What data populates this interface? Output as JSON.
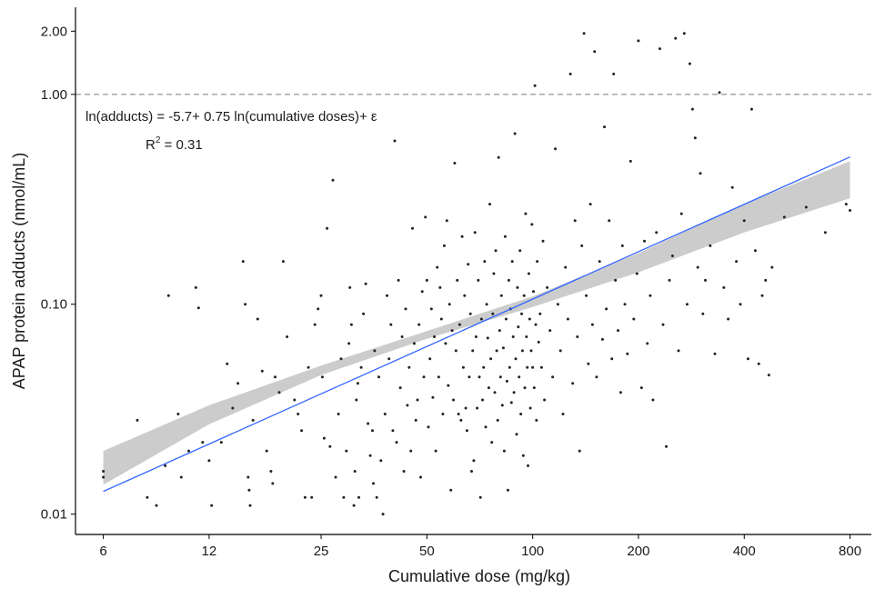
{
  "chart_data": {
    "type": "scatter",
    "title": "",
    "xlabel": "Cumulative dose (mg/kg)",
    "ylabel": "APAP protein adducts (nmol/mL)",
    "x_scale": "log",
    "y_scale": "log",
    "xlim": [
      5,
      920
    ],
    "ylim": [
      0.008,
      2.6
    ],
    "x_ticks": [
      6,
      12,
      25,
      50,
      100,
      200,
      400,
      800
    ],
    "x_tick_labels": [
      "6",
      "12",
      "25",
      "50",
      "100",
      "200",
      "400",
      "800"
    ],
    "y_ticks": [
      0.01,
      0.1,
      1,
      2
    ],
    "y_tick_labels": [
      "0.01",
      "0.10",
      "1.00",
      "2.00"
    ],
    "grid": false,
    "reference_line": {
      "y": 1.0,
      "style": "dashed",
      "color": "#888888"
    },
    "annotations": {
      "equation": "ln(adducts) = -5.7+ 0.75 ln(cumulative doses)+ ε",
      "r2_prefix": "R",
      "r2_sup": "2",
      "r2_suffix": " = 0.31"
    },
    "regression": {
      "intercept": -5.7,
      "slope": 0.75,
      "x_range": [
        6,
        800
      ],
      "color": "#3366FF",
      "ci_color": "#cccccc"
    },
    "ci_band": {
      "x": [
        6,
        12,
        25,
        50,
        100,
        200,
        400,
        800
      ],
      "lower": [
        0.0138,
        0.0268,
        0.046,
        0.0685,
        0.097,
        0.142,
        0.22,
        0.32
      ],
      "upper": [
        0.02,
        0.033,
        0.051,
        0.0745,
        0.109,
        0.175,
        0.3,
        0.48
      ]
    },
    "points": [
      [
        6.0,
        0.015
      ],
      [
        6.0,
        0.016
      ],
      [
        7.5,
        0.028
      ],
      [
        8.0,
        0.012
      ],
      [
        8.5,
        0.011
      ],
      [
        9.0,
        0.017
      ],
      [
        9.2,
        0.11
      ],
      [
        9.8,
        0.03
      ],
      [
        10.0,
        0.015
      ],
      [
        10.5,
        0.02
      ],
      [
        11.0,
        0.12
      ],
      [
        11.2,
        0.096
      ],
      [
        11.5,
        0.022
      ],
      [
        12.0,
        0.018
      ],
      [
        12.2,
        0.011
      ],
      [
        13.0,
        0.022
      ],
      [
        13.5,
        0.052
      ],
      [
        14.0,
        0.032
      ],
      [
        14.5,
        0.042
      ],
      [
        15.0,
        0.16
      ],
      [
        15.2,
        0.1
      ],
      [
        15.5,
        0.015
      ],
      [
        15.6,
        0.013
      ],
      [
        15.7,
        0.011
      ],
      [
        16.0,
        0.028
      ],
      [
        16.5,
        0.085
      ],
      [
        17.0,
        0.048
      ],
      [
        17.5,
        0.02
      ],
      [
        18.0,
        0.016
      ],
      [
        18.2,
        0.014
      ],
      [
        18.5,
        0.045
      ],
      [
        19.0,
        0.038
      ],
      [
        19.5,
        0.16
      ],
      [
        20.0,
        0.07
      ],
      [
        21.0,
        0.035
      ],
      [
        21.5,
        0.03
      ],
      [
        22.0,
        0.025
      ],
      [
        22.5,
        0.012
      ],
      [
        23.0,
        0.05
      ],
      [
        23.5,
        0.012
      ],
      [
        24.0,
        0.08
      ],
      [
        24.5,
        0.095
      ],
      [
        25.0,
        0.11
      ],
      [
        25.2,
        0.045
      ],
      [
        25.5,
        0.023
      ],
      [
        26.0,
        0.23
      ],
      [
        26.5,
        0.021
      ],
      [
        27.0,
        0.39
      ],
      [
        27.5,
        0.015
      ],
      [
        28.0,
        0.03
      ],
      [
        28.5,
        0.055
      ],
      [
        29.0,
        0.012
      ],
      [
        29.5,
        0.02
      ],
      [
        30.0,
        0.065
      ],
      [
        30.2,
        0.12
      ],
      [
        30.5,
        0.08
      ],
      [
        31.0,
        0.011
      ],
      [
        31.2,
        0.016
      ],
      [
        31.5,
        0.035
      ],
      [
        31.8,
        0.042
      ],
      [
        32.0,
        0.012
      ],
      [
        32.5,
        0.05
      ],
      [
        33.0,
        0.09
      ],
      [
        33.5,
        0.125
      ],
      [
        34.0,
        0.027
      ],
      [
        34.5,
        0.019
      ],
      [
        35.0,
        0.025
      ],
      [
        35.2,
        0.014
      ],
      [
        35.5,
        0.06
      ],
      [
        36.0,
        0.012
      ],
      [
        36.5,
        0.045
      ],
      [
        37.0,
        0.018
      ],
      [
        37.5,
        0.01
      ],
      [
        38.0,
        0.03
      ],
      [
        38.5,
        0.11
      ],
      [
        39.0,
        0.055
      ],
      [
        39.5,
        0.08
      ],
      [
        40.0,
        0.025
      ],
      [
        40.5,
        0.6
      ],
      [
        41.0,
        0.022
      ],
      [
        41.5,
        0.13
      ],
      [
        42.0,
        0.04
      ],
      [
        42.5,
        0.07
      ],
      [
        43.0,
        0.016
      ],
      [
        43.5,
        0.095
      ],
      [
        44.0,
        0.033
      ],
      [
        44.5,
        0.05
      ],
      [
        45.0,
        0.02
      ],
      [
        45.5,
        0.23
      ],
      [
        46.0,
        0.065
      ],
      [
        46.5,
        0.028
      ],
      [
        47.0,
        0.035
      ],
      [
        47.5,
        0.08
      ],
      [
        48.0,
        0.015
      ],
      [
        48.5,
        0.115
      ],
      [
        49.0,
        0.045
      ],
      [
        49.5,
        0.26
      ],
      [
        50.0,
        0.13
      ],
      [
        50.5,
        0.026
      ],
      [
        51.0,
        0.055
      ],
      [
        51.5,
        0.095
      ],
      [
        52.0,
        0.036
      ],
      [
        52.5,
        0.07
      ],
      [
        53.0,
        0.02
      ],
      [
        53.5,
        0.15
      ],
      [
        54.0,
        0.045
      ],
      [
        54.5,
        0.12
      ],
      [
        55.0,
        0.085
      ],
      [
        55.5,
        0.03
      ],
      [
        56.0,
        0.19
      ],
      [
        56.5,
        0.065
      ],
      [
        57.0,
        0.25
      ],
      [
        57.5,
        0.041
      ],
      [
        58.0,
        0.1
      ],
      [
        58.5,
        0.013
      ],
      [
        59.0,
        0.075
      ],
      [
        59.5,
        0.035
      ],
      [
        60.0,
        0.47
      ],
      [
        60.5,
        0.06
      ],
      [
        61.0,
        0.13
      ],
      [
        61.5,
        0.03
      ],
      [
        62.0,
        0.08
      ],
      [
        62.5,
        0.028
      ],
      [
        63.0,
        0.21
      ],
      [
        63.5,
        0.05
      ],
      [
        64.0,
        0.11
      ],
      [
        64.5,
        0.032
      ],
      [
        65.0,
        0.025
      ],
      [
        65.5,
        0.155
      ],
      [
        66.0,
        0.045
      ],
      [
        66.5,
        0.09
      ],
      [
        67.0,
        0.016
      ],
      [
        67.5,
        0.06
      ],
      [
        68.0,
        0.018
      ],
      [
        68.5,
        0.22
      ],
      [
        69.0,
        0.07
      ],
      [
        69.5,
        0.032
      ],
      [
        70.0,
        0.13
      ],
      [
        70.5,
        0.045
      ],
      [
        71.0,
        0.012
      ],
      [
        71.5,
        0.085
      ],
      [
        72.0,
        0.035
      ],
      [
        72.5,
        0.05
      ],
      [
        73.0,
        0.16
      ],
      [
        73.5,
        0.026
      ],
      [
        74.0,
        0.1
      ],
      [
        74.5,
        0.069
      ],
      [
        75.0,
        0.04
      ],
      [
        75.5,
        0.3
      ],
      [
        76.0,
        0.055
      ],
      [
        76.5,
        0.022
      ],
      [
        77.0,
        0.09
      ],
      [
        77.5,
        0.14
      ],
      [
        78.0,
        0.038
      ],
      [
        78.5,
        0.18
      ],
      [
        79.0,
        0.06
      ],
      [
        79.5,
        0.028
      ],
      [
        80.0,
        0.5
      ],
      [
        80.5,
        0.075
      ],
      [
        81.0,
        0.045
      ],
      [
        81.5,
        0.11
      ],
      [
        82.0,
        0.033
      ],
      [
        82.5,
        0.062
      ],
      [
        83.0,
        0.02
      ],
      [
        83.5,
        0.21
      ],
      [
        84.0,
        0.085
      ],
      [
        84.5,
        0.043
      ],
      [
        85.0,
        0.013
      ],
      [
        85.5,
        0.13
      ],
      [
        86.0,
        0.05
      ],
      [
        86.5,
        0.095
      ],
      [
        87.0,
        0.034
      ],
      [
        87.5,
        0.16
      ],
      [
        88.0,
        0.07
      ],
      [
        88.5,
        0.038
      ],
      [
        89.0,
        0.65
      ],
      [
        89.5,
        0.055
      ],
      [
        90.0,
        0.024
      ],
      [
        90.5,
        0.12
      ],
      [
        91.0,
        0.078
      ],
      [
        91.5,
        0.045
      ],
      [
        92.0,
        0.18
      ],
      [
        92.5,
        0.03
      ],
      [
        93.0,
        0.09
      ],
      [
        93.5,
        0.06
      ],
      [
        94.0,
        0.019
      ],
      [
        94.5,
        0.11
      ],
      [
        95.0,
        0.04
      ],
      [
        95.5,
        0.27
      ],
      [
        96.0,
        0.07
      ],
      [
        96.5,
        0.05
      ],
      [
        97.0,
        0.017
      ],
      [
        97.5,
        0.14
      ],
      [
        98.0,
        0.085
      ],
      [
        98.5,
        0.032
      ],
      [
        99.0,
        0.06
      ],
      [
        99.5,
        0.24
      ],
      [
        100.0,
        0.05
      ],
      [
        100.5,
        0.115
      ],
      [
        101.0,
        0.04
      ],
      [
        101.5,
        1.1
      ],
      [
        102.0,
        0.08
      ],
      [
        102.5,
        0.028
      ],
      [
        103.0,
        0.16
      ],
      [
        104.0,
        0.066
      ],
      [
        105.0,
        0.09
      ],
      [
        106.0,
        0.05
      ],
      [
        107.0,
        0.2
      ],
      [
        108.0,
        0.035
      ],
      [
        110.0,
        0.12
      ],
      [
        112.0,
        0.075
      ],
      [
        114.0,
        0.045
      ],
      [
        116.0,
        0.55
      ],
      [
        118.0,
        0.1
      ],
      [
        120.0,
        0.06
      ],
      [
        122.0,
        0.03
      ],
      [
        124.0,
        0.15
      ],
      [
        126.0,
        0.085
      ],
      [
        128.0,
        1.25
      ],
      [
        130.0,
        0.042
      ],
      [
        132.0,
        0.25
      ],
      [
        134.0,
        0.07
      ],
      [
        136.0,
        0.02
      ],
      [
        138.0,
        0.19
      ],
      [
        140.0,
        1.95
      ],
      [
        142.0,
        0.11
      ],
      [
        144.0,
        0.052
      ],
      [
        146.0,
        0.3
      ],
      [
        148.0,
        0.08
      ],
      [
        150.0,
        1.6
      ],
      [
        152.0,
        0.045
      ],
      [
        155.0,
        0.16
      ],
      [
        158.0,
        0.068
      ],
      [
        160.0,
        0.7
      ],
      [
        162.0,
        0.095
      ],
      [
        165.0,
        0.25
      ],
      [
        168.0,
        0.055
      ],
      [
        170.0,
        1.25
      ],
      [
        172.0,
        0.13
      ],
      [
        175.0,
        0.075
      ],
      [
        178.0,
        0.038
      ],
      [
        180.0,
        0.19
      ],
      [
        183.0,
        0.1
      ],
      [
        186.0,
        0.058
      ],
      [
        190.0,
        0.48
      ],
      [
        194.0,
        0.085
      ],
      [
        198.0,
        0.14
      ],
      [
        200.0,
        1.8
      ],
      [
        204.0,
        0.04
      ],
      [
        208.0,
        0.2
      ],
      [
        212.0,
        0.065
      ],
      [
        216.0,
        0.11
      ],
      [
        220.0,
        0.035
      ],
      [
        225.0,
        0.22
      ],
      [
        230.0,
        1.65
      ],
      [
        235.0,
        0.08
      ],
      [
        240.0,
        0.021
      ],
      [
        245.0,
        0.13
      ],
      [
        250.0,
        0.17
      ],
      [
        255.0,
        1.85
      ],
      [
        260.0,
        0.06
      ],
      [
        265.0,
        0.27
      ],
      [
        270.0,
        1.95
      ],
      [
        275.0,
        0.1
      ],
      [
        280.0,
        1.4
      ],
      [
        285.0,
        0.85
      ],
      [
        290.0,
        0.62
      ],
      [
        295.0,
        0.15
      ],
      [
        300.0,
        0.42
      ],
      [
        305.0,
        0.09
      ],
      [
        310.0,
        0.13
      ],
      [
        320.0,
        0.19
      ],
      [
        330.0,
        0.058
      ],
      [
        340.0,
        1.02
      ],
      [
        350.0,
        0.12
      ],
      [
        360.0,
        0.085
      ],
      [
        370.0,
        0.36
      ],
      [
        380.0,
        0.16
      ],
      [
        390.0,
        0.1
      ],
      [
        400.0,
        0.25
      ],
      [
        410.0,
        0.055
      ],
      [
        420.0,
        0.85
      ],
      [
        430.0,
        0.18
      ],
      [
        440.0,
        0.052
      ],
      [
        450.0,
        0.11
      ],
      [
        460.0,
        0.13
      ],
      [
        470.0,
        0.046
      ],
      [
        480.0,
        0.15
      ],
      [
        520.0,
        0.26
      ],
      [
        600.0,
        0.29
      ],
      [
        680.0,
        0.22
      ],
      [
        780.0,
        0.3
      ],
      [
        800.0,
        0.28
      ]
    ]
  }
}
